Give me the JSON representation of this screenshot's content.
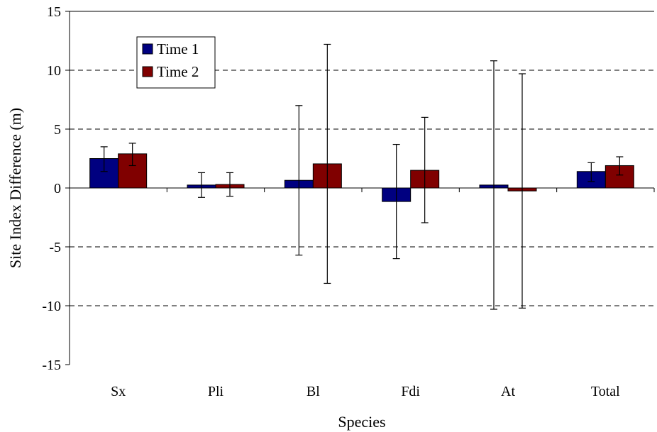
{
  "chart_data": {
    "type": "bar",
    "title": "",
    "xlabel": "Species",
    "ylabel": "Site Index Difference (m)",
    "ylim": [
      -15,
      15
    ],
    "yticks": [
      -15,
      -10,
      -5,
      0,
      5,
      10,
      15
    ],
    "categories": [
      "Sx",
      "Pli",
      "Bl",
      "Fdi",
      "At",
      "Total"
    ],
    "grid": "dashed horizontal lines at major ticks",
    "legend_position": "top-left",
    "series": [
      {
        "name": "Time 1",
        "color": "#000080",
        "values": [
          2.5,
          0.25,
          0.65,
          -1.15,
          0.25,
          1.4
        ],
        "error_low": [
          1.4,
          -0.8,
          -5.7,
          -6.0,
          -10.3,
          0.55
        ],
        "error_high": [
          3.5,
          1.3,
          7.0,
          3.7,
          10.8,
          2.15
        ]
      },
      {
        "name": "Time 2",
        "color": "#800000",
        "values": [
          2.9,
          0.3,
          2.05,
          1.5,
          -0.25,
          1.9
        ],
        "error_low": [
          1.9,
          -0.7,
          -8.1,
          -2.95,
          -10.2,
          1.1
        ],
        "error_high": [
          3.8,
          1.3,
          12.2,
          6.0,
          9.7,
          2.65
        ]
      }
    ]
  }
}
